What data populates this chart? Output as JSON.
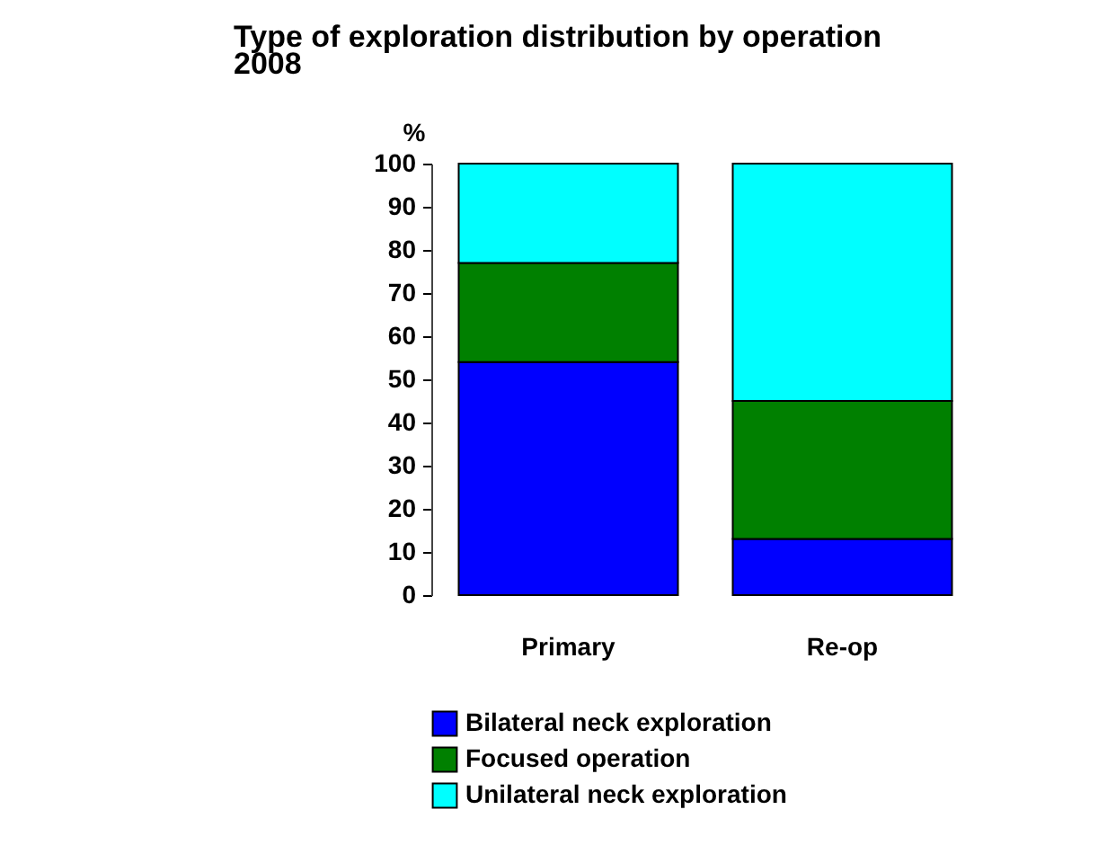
{
  "chart_data": {
    "type": "bar",
    "title": "Type of exploration distribution by operation\n2008",
    "ylabel": "%",
    "categories": [
      "Primary",
      "Re-op"
    ],
    "stacked": true,
    "series": [
      {
        "name": "Bilateral neck exploration",
        "color": "#0000ff",
        "values": [
          54,
          13
        ]
      },
      {
        "name": "Focused operation",
        "color": "#008000",
        "values": [
          23,
          32
        ]
      },
      {
        "name": "Unilateral neck exploration",
        "color": "#00ffff",
        "values": [
          23,
          55
        ]
      }
    ],
    "ylim": [
      0,
      100
    ],
    "yticks": [
      0,
      10,
      20,
      30,
      40,
      50,
      60,
      70,
      80,
      90,
      100
    ],
    "grid": false,
    "legend": "bottom"
  }
}
